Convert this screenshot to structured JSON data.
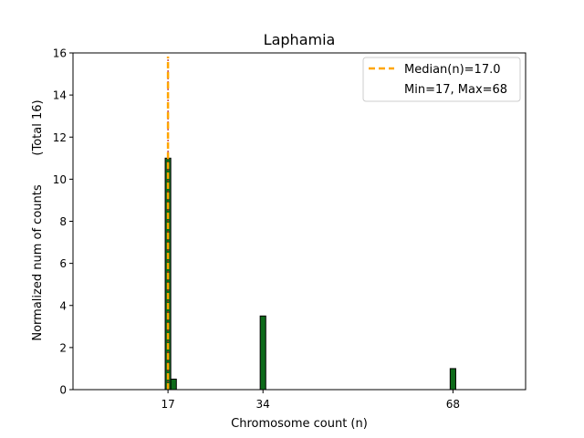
{
  "chart_data": {
    "type": "bar",
    "title": "Laphamia",
    "xlabel": "Chromosome count (n)",
    "ylabel": "Normalized num of counts",
    "ylabel_total": "(Total 16)",
    "xlim": [
      0,
      81
    ],
    "ylim": [
      0,
      16
    ],
    "xticks": [
      17,
      34,
      68
    ],
    "yticks": [
      0,
      2,
      4,
      6,
      8,
      10,
      12,
      14,
      16
    ],
    "bar_width": 1,
    "bars": [
      {
        "x": 17,
        "value": 11
      },
      {
        "x": 18,
        "value": 0.5
      },
      {
        "x": 34,
        "value": 3.5
      },
      {
        "x": 68,
        "value": 1
      }
    ],
    "median": 17.0,
    "legend": {
      "position": "top-right",
      "median_label": "Median(n)=17.0",
      "range_label": "Min=17, Max=68"
    },
    "colors": {
      "bar_fill": "#0e6b1a",
      "bar_edge": "#000000",
      "median_line": "#ffa500",
      "min_line": "#b22222"
    }
  }
}
